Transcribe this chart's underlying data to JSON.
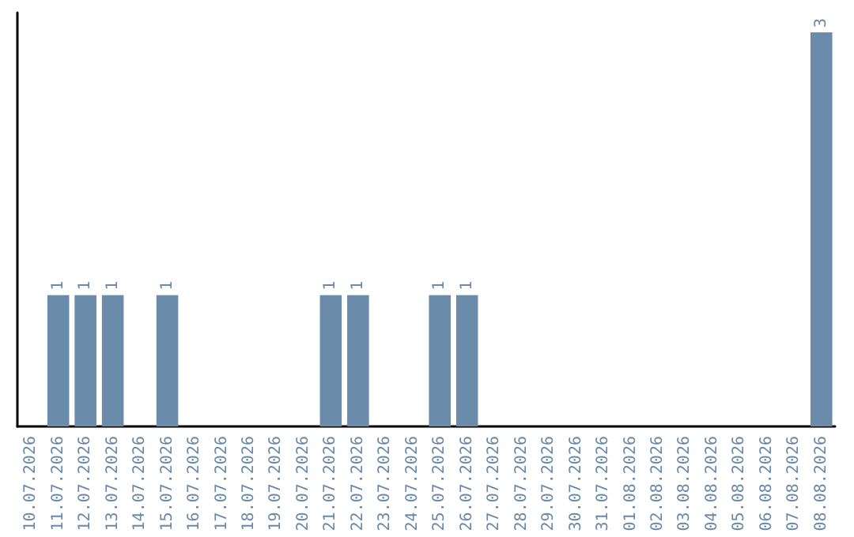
{
  "chart_data": {
    "type": "bar",
    "categories": [
      "10.07.2026",
      "11.07.2026",
      "12.07.2026",
      "13.07.2026",
      "14.07.2026",
      "15.07.2026",
      "16.07.2026",
      "17.07.2026",
      "18.07.2026",
      "19.07.2026",
      "20.07.2026",
      "21.07.2026",
      "22.07.2026",
      "23.07.2026",
      "24.07.2026",
      "25.07.2026",
      "26.07.2026",
      "27.07.2026",
      "28.07.2026",
      "29.07.2026",
      "30.07.2026",
      "31.07.2026",
      "01.08.2026",
      "02.08.2026",
      "03.08.2026",
      "04.08.2026",
      "05.08.2026",
      "06.08.2026",
      "07.08.2026",
      "08.08.2026"
    ],
    "values": [
      0,
      1,
      1,
      1,
      0,
      1,
      0,
      0,
      0,
      0,
      0,
      1,
      1,
      0,
      0,
      1,
      1,
      0,
      0,
      0,
      0,
      0,
      0,
      0,
      0,
      0,
      0,
      0,
      0,
      3
    ],
    "value_labels": [
      null,
      "1",
      "1",
      "1",
      null,
      "1",
      null,
      null,
      null,
      null,
      null,
      "1",
      "1",
      null,
      null,
      "1",
      "1",
      null,
      null,
      null,
      null,
      null,
      null,
      null,
      null,
      null,
      null,
      null,
      null,
      "3"
    ],
    "color": "#6a8caa",
    "tick_labels": "x",
    "grid": false
  }
}
